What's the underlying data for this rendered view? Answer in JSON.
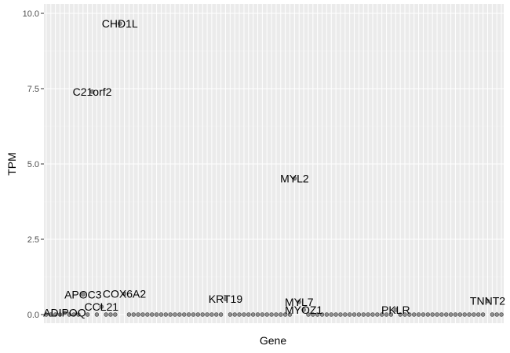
{
  "chart_data": {
    "type": "scatter",
    "title": "",
    "xlabel": "Gene",
    "ylabel": "TPM",
    "ylim": [
      0,
      10
    ],
    "yticks": [
      0.0,
      2.5,
      5.0,
      7.5,
      10.0
    ],
    "ytick_labels": [
      "0.0",
      "2.5",
      "5.0",
      "7.5",
      "10.0"
    ],
    "x_tick_labels_shown": false,
    "grid": true,
    "legend": "none",
    "n_genes": 100,
    "baseline_value": 0.0,
    "points": [
      {
        "gene": "ADIPOQ",
        "index": 4,
        "value": 0.06
      },
      {
        "gene": "APOC3",
        "index": 8,
        "value": 0.67
      },
      {
        "gene": "CCL21",
        "index": 12,
        "value": 0.26
      },
      {
        "gene": "C21orf2",
        "index": 10,
        "value": 7.4
      },
      {
        "gene": "CHD1L",
        "index": 16,
        "value": 9.66
      },
      {
        "gene": "COX6A2",
        "index": 17,
        "value": 0.69
      },
      {
        "gene": "KRT19",
        "index": 39,
        "value": 0.52
      },
      {
        "gene": "MYL2",
        "index": 54,
        "value": 4.52
      },
      {
        "gene": "MYL7",
        "index": 55,
        "value": 0.42
      },
      {
        "gene": "MYOZ1",
        "index": 56,
        "value": 0.16
      },
      {
        "gene": "PKLR",
        "index": 76,
        "value": 0.16
      },
      {
        "gene": "TNNT2",
        "index": 96,
        "value": 0.45
      }
    ],
    "colors": {
      "panel": "#ebebeb",
      "grid_major": "#ffffff",
      "grid_minor": "#f4f4f4",
      "point_fill": "#7f7f7f",
      "point_stroke": "#3a3a3a",
      "text": "#000000",
      "tick_text": "#4d4d4d"
    }
  }
}
